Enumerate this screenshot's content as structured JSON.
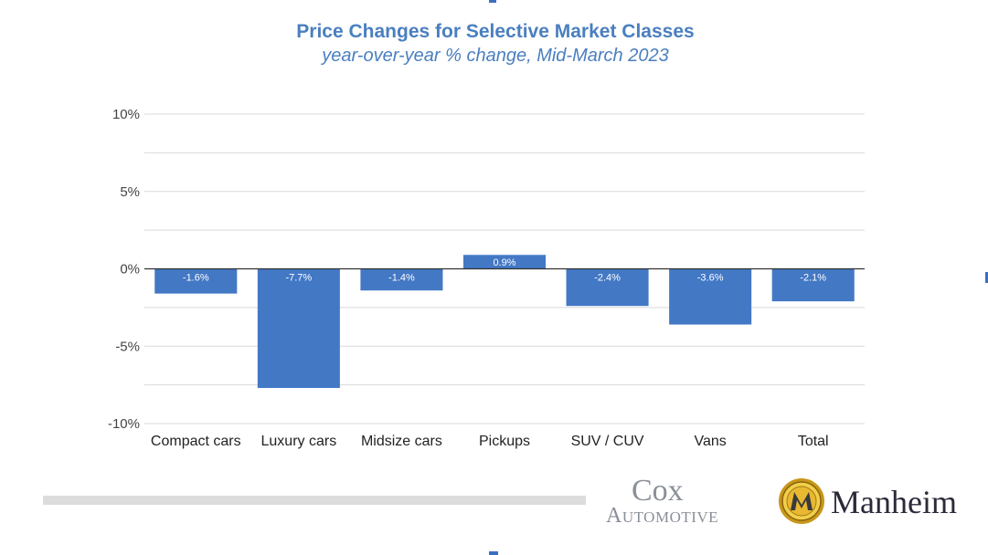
{
  "chart_data": {
    "type": "bar",
    "title": "Price Changes for Selective Market Classes",
    "subtitle": "year-over-year % change, Mid-March 2023",
    "categories": [
      "Compact cars",
      "Luxury cars",
      "Midsize cars",
      "Pickups",
      "SUV / CUV",
      "Vans",
      "Total"
    ],
    "values": [
      -1.6,
      -7.7,
      -1.4,
      0.9,
      -2.4,
      -3.6,
      -2.1
    ],
    "data_labels": [
      "-1.6%",
      "-7.7%",
      "-1.4%",
      "0.9%",
      "-2.4%",
      "-3.6%",
      "-2.1%"
    ],
    "y_ticks": [
      10,
      5,
      0,
      -5,
      -10
    ],
    "y_tick_labels": [
      "10%",
      "5%",
      "0%",
      "-5%",
      "-10%"
    ],
    "ylim": [
      -10,
      10
    ],
    "grid": true,
    "bar_color": "#4378c5",
    "xlabel": "",
    "ylabel": ""
  },
  "logos": {
    "cox_top": "Cox",
    "cox_bottom": "Automotive",
    "manheim": "Manheim"
  },
  "colors": {
    "title": "#4a7fbf",
    "grid": "#d9d9d9",
    "zero_axis": "#333333",
    "manheim_gold": "#d4a017"
  }
}
